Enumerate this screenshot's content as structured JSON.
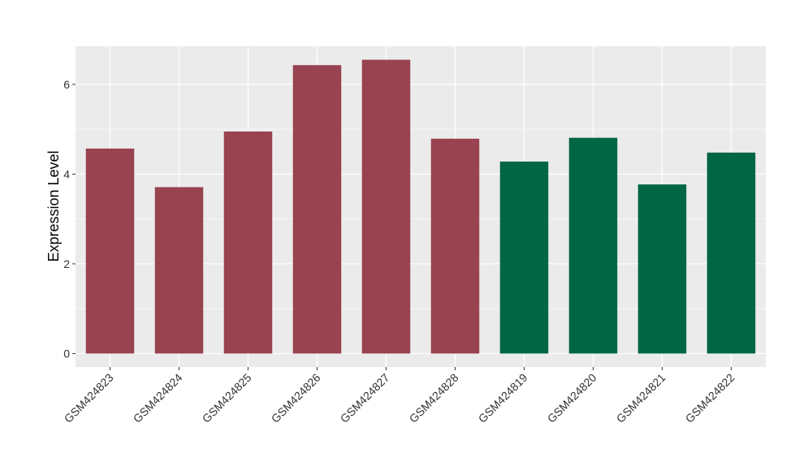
{
  "chart_data": {
    "type": "bar",
    "title": "",
    "xlabel": "",
    "ylabel": "Expression Level",
    "ylim": [
      -0.3,
      6.85
    ],
    "yticks": [
      0,
      2,
      4,
      6
    ],
    "grid": true,
    "legend": "none",
    "panel_background": "#EBEBEB",
    "categories": [
      "GSM424823",
      "GSM424824",
      "GSM424825",
      "GSM424826",
      "GSM424827",
      "GSM424828",
      "GSM424819",
      "GSM424820",
      "GSM424821",
      "GSM424822"
    ],
    "values": [
      4.57,
      3.71,
      4.95,
      6.43,
      6.55,
      4.79,
      4.28,
      4.81,
      3.77,
      4.48
    ],
    "colors": [
      "#994250",
      "#994250",
      "#994250",
      "#994250",
      "#994250",
      "#994250",
      "#006644",
      "#006644",
      "#006644",
      "#006644"
    ]
  }
}
